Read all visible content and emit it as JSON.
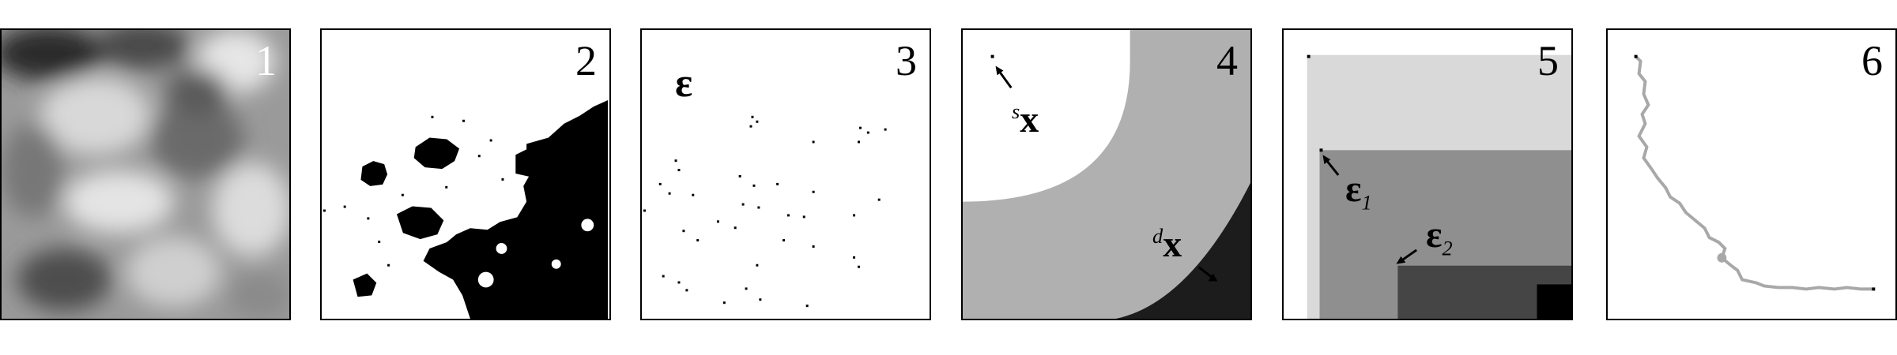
{
  "panels": [
    {
      "number": "1"
    },
    {
      "number": "2"
    },
    {
      "number": "3",
      "label": "ε"
    },
    {
      "number": "4",
      "label_s": "s",
      "label_s_main": "x",
      "label_d": "d",
      "label_d_main": "x"
    },
    {
      "number": "5",
      "label_e1": "ε",
      "label_e1_sub": "1",
      "label_e2": "ε",
      "label_e2_sub": "2"
    },
    {
      "number": "6"
    }
  ],
  "colors": {
    "border": "#000000",
    "light_gray": "#d9d9d9",
    "mid_gray": "#b0b0b0",
    "gray": "#8f8f8f",
    "dark_gray": "#454545",
    "near_black": "#1c1c1c",
    "path_gray": "#a8a8a8"
  }
}
